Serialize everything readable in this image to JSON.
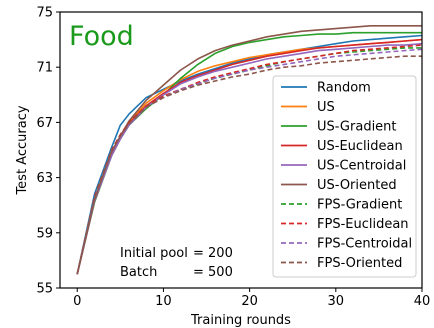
{
  "chart_data": {
    "type": "line",
    "title": "Food",
    "title_color": "#1a9a1a",
    "xlabel": "Training rounds",
    "ylabel": "Test Accuracy",
    "xlim": [
      -2,
      40
    ],
    "ylim": [
      55,
      75
    ],
    "xticks": [
      0,
      10,
      20,
      30,
      40
    ],
    "yticks": [
      55,
      59,
      63,
      67,
      71,
      75
    ],
    "grid": false,
    "legend_position": "bottom-right",
    "annotation_lines": [
      {
        "label": "Initial pool",
        "value": "= 200"
      },
      {
        "label": "Batch",
        "value": "= 500"
      }
    ],
    "x": [
      0,
      2,
      4,
      5,
      6,
      8,
      10,
      12,
      14,
      16,
      18,
      20,
      22,
      24,
      26,
      28,
      30,
      32,
      34,
      36,
      38,
      40
    ],
    "series": [
      {
        "name": "Random",
        "color": "#1f77b4",
        "dash": "solid",
        "values": [
          56.0,
          61.8,
          65.2,
          66.8,
          67.6,
          68.8,
          69.4,
          70.0,
          70.5,
          70.9,
          71.3,
          71.6,
          71.9,
          72.1,
          72.3,
          72.5,
          72.7,
          72.9,
          73.0,
          73.1,
          73.2,
          73.3
        ]
      },
      {
        "name": "US",
        "color": "#ff7f0e",
        "dash": "solid",
        "values": [
          56.0,
          61.4,
          64.8,
          66.0,
          67.0,
          68.4,
          69.3,
          70.1,
          70.7,
          71.1,
          71.4,
          71.7,
          71.9,
          72.1,
          72.3,
          72.4,
          72.5,
          72.6,
          72.7,
          72.8,
          72.9,
          73.0
        ]
      },
      {
        "name": "US-Gradient",
        "color": "#2ca02c",
        "dash": "solid",
        "values": [
          56.0,
          61.2,
          64.6,
          65.8,
          66.8,
          68.0,
          69.0,
          70.2,
          71.2,
          72.0,
          72.5,
          72.8,
          73.0,
          73.2,
          73.3,
          73.4,
          73.4,
          73.5,
          73.5,
          73.5,
          73.5,
          73.5
        ]
      },
      {
        "name": "US-Euclidean",
        "color": "#d62728",
        "dash": "solid",
        "values": [
          56.0,
          61.3,
          64.7,
          65.9,
          66.9,
          68.2,
          69.1,
          69.9,
          70.4,
          70.8,
          71.2,
          71.5,
          71.8,
          72.0,
          72.2,
          72.4,
          72.5,
          72.6,
          72.7,
          72.8,
          72.9,
          73.0
        ]
      },
      {
        "name": "US-Centroidal",
        "color": "#9467bd",
        "dash": "solid",
        "values": [
          56.0,
          61.3,
          64.6,
          65.8,
          66.8,
          68.1,
          69.0,
          69.8,
          70.3,
          70.7,
          71.0,
          71.3,
          71.6,
          71.8,
          72.0,
          72.2,
          72.3,
          72.4,
          72.5,
          72.6,
          72.6,
          72.7
        ]
      },
      {
        "name": "US-Oriented",
        "color": "#8c564b",
        "dash": "solid",
        "values": [
          56.0,
          61.4,
          64.9,
          66.0,
          67.1,
          68.6,
          69.7,
          70.8,
          71.6,
          72.2,
          72.6,
          72.9,
          73.2,
          73.4,
          73.6,
          73.7,
          73.8,
          73.9,
          74.0,
          74.0,
          74.0,
          74.0
        ]
      },
      {
        "name": "FPS-Gradient",
        "color": "#2ca02c",
        "dash": "dashed",
        "values": [
          56.0,
          61.6,
          65.0,
          66.1,
          67.0,
          68.2,
          68.9,
          69.4,
          69.8,
          70.2,
          70.5,
          70.8,
          71.1,
          71.4,
          71.6,
          71.8,
          72.0,
          72.1,
          72.2,
          72.3,
          72.4,
          72.4
        ]
      },
      {
        "name": "FPS-Euclidean",
        "color": "#d62728",
        "dash": "dashed",
        "values": [
          56.0,
          61.6,
          65.0,
          66.1,
          67.0,
          68.2,
          68.9,
          69.4,
          69.9,
          70.3,
          70.6,
          70.9,
          71.2,
          71.4,
          71.6,
          71.8,
          72.0,
          72.2,
          72.3,
          72.4,
          72.5,
          72.6
        ]
      },
      {
        "name": "FPS-Centroidal",
        "color": "#9467bd",
        "dash": "dashed",
        "values": [
          56.0,
          61.5,
          64.9,
          66.0,
          66.9,
          68.1,
          68.8,
          69.4,
          69.8,
          70.2,
          70.5,
          70.8,
          71.0,
          71.2,
          71.4,
          71.6,
          71.8,
          71.9,
          72.0,
          72.1,
          72.2,
          72.3
        ]
      },
      {
        "name": "FPS-Oriented",
        "color": "#8c564b",
        "dash": "dashed",
        "values": [
          56.0,
          61.5,
          64.9,
          66.0,
          66.9,
          68.1,
          68.8,
          69.3,
          69.7,
          70.0,
          70.3,
          70.5,
          70.8,
          71.0,
          71.1,
          71.3,
          71.4,
          71.5,
          71.6,
          71.7,
          71.8,
          71.8
        ]
      }
    ]
  }
}
